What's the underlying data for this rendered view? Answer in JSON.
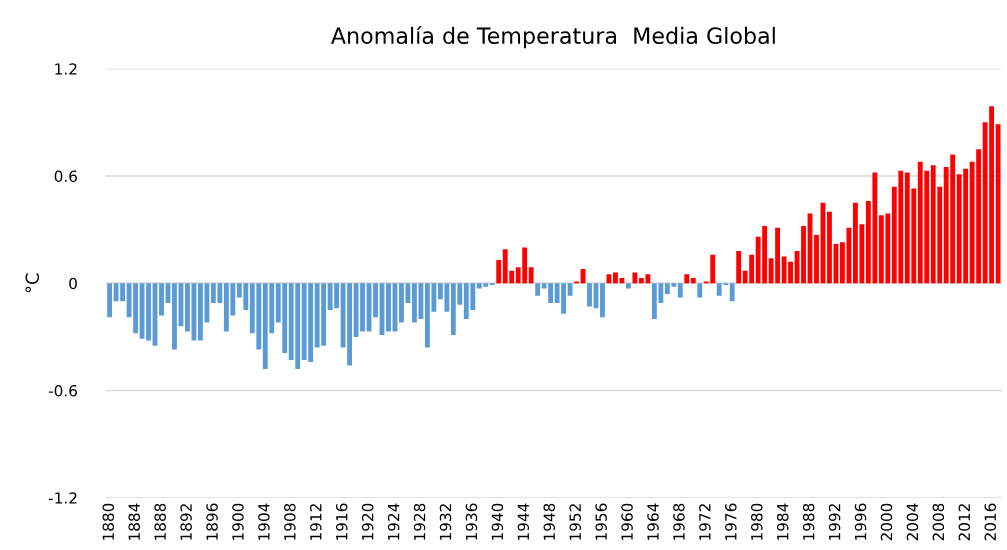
{
  "chart_data": {
    "type": "bar",
    "title": "Anomalía de Temperatura  Media Global",
    "ylabel": "°C",
    "categories": [
      "1880",
      null,
      null,
      null,
      "1884",
      null,
      null,
      null,
      "1888",
      null,
      null,
      null,
      "1892",
      null,
      null,
      null,
      "1896",
      null,
      null,
      null,
      "1900",
      null,
      null,
      null,
      "1904",
      null,
      null,
      null,
      "1908",
      null,
      null,
      null,
      "1912",
      null,
      null,
      null,
      "1916",
      null,
      null,
      null,
      "1920",
      null,
      null,
      null,
      "1924",
      null,
      null,
      null,
      "1928",
      null,
      null,
      null,
      "1932",
      null,
      null,
      null,
      "1936",
      null,
      null,
      null,
      "1940",
      null,
      null,
      null,
      "1944",
      null,
      null,
      null,
      "1948",
      null,
      null,
      null,
      "1952",
      null,
      null,
      null,
      "1956",
      null,
      null,
      null,
      "1960",
      null,
      null,
      null,
      "1964",
      null,
      null,
      null,
      "1968",
      null,
      null,
      null,
      "1972",
      null,
      null,
      null,
      "1976",
      null,
      null,
      null,
      "1980",
      null,
      null,
      null,
      "1984",
      null,
      null,
      null,
      "1988",
      null,
      null,
      null,
      "1992",
      null,
      null,
      null,
      "1996",
      null,
      null,
      null,
      "2000",
      null,
      null,
      null,
      "2004",
      null,
      null,
      null,
      "2008",
      null,
      null,
      null,
      "2012",
      null,
      null,
      null,
      "2016",
      null
    ],
    "values": [
      -0.19,
      -0.1,
      -0.1,
      -0.19,
      -0.28,
      -0.31,
      -0.32,
      -0.35,
      -0.18,
      -0.11,
      -0.37,
      -0.24,
      -0.27,
      -0.32,
      -0.32,
      -0.22,
      -0.11,
      -0.11,
      -0.27,
      -0.18,
      -0.08,
      -0.15,
      -0.28,
      -0.37,
      -0.48,
      -0.28,
      -0.22,
      -0.39,
      -0.43,
      -0.48,
      -0.43,
      -0.44,
      -0.36,
      -0.35,
      -0.15,
      -0.14,
      -0.36,
      -0.46,
      -0.3,
      -0.27,
      -0.27,
      -0.19,
      -0.29,
      -0.27,
      -0.27,
      -0.22,
      -0.11,
      -0.22,
      -0.2,
      -0.36,
      -0.16,
      -0.09,
      -0.16,
      -0.29,
      -0.12,
      -0.2,
      -0.15,
      -0.03,
      -0.02,
      -0.01,
      0.13,
      0.19,
      0.07,
      0.09,
      0.2,
      0.09,
      -0.07,
      -0.03,
      -0.11,
      -0.11,
      -0.17,
      -0.07,
      0.01,
      0.08,
      -0.13,
      -0.14,
      -0.19,
      0.05,
      0.06,
      0.03,
      -0.03,
      0.06,
      0.03,
      0.05,
      -0.2,
      -0.11,
      -0.06,
      -0.02,
      -0.08,
      0.05,
      0.03,
      -0.08,
      0.01,
      0.16,
      -0.07,
      -0.01,
      -0.1,
      0.18,
      0.07,
      0.16,
      0.26,
      0.32,
      0.14,
      0.31,
      0.15,
      0.12,
      0.18,
      0.32,
      0.39,
      0.27,
      0.45,
      0.4,
      0.22,
      0.23,
      0.31,
      0.45,
      0.33,
      0.46,
      0.62,
      0.38,
      0.39,
      0.54,
      0.63,
      0.62,
      0.53,
      0.68,
      0.63,
      0.66,
      0.54,
      0.65,
      0.72,
      0.61,
      0.64,
      0.68,
      0.75,
      0.9,
      0.99,
      0.89
    ],
    "colors": [
      "#5b9bd5",
      "#5b9bd5",
      "#5b9bd5",
      "#5b9bd5",
      "#5b9bd5",
      "#5b9bd5",
      "#5b9bd5",
      "#5b9bd5",
      "#5b9bd5",
      "#5b9bd5",
      "#5b9bd5",
      "#5b9bd5",
      "#5b9bd5",
      "#5b9bd5",
      "#5b9bd5",
      "#5b9bd5",
      "#5b9bd5",
      "#5b9bd5",
      "#5b9bd5",
      "#5b9bd5",
      "#5b9bd5",
      "#5b9bd5",
      "#5b9bd5",
      "#5b9bd5",
      "#5b9bd5",
      "#5b9bd5",
      "#5b9bd5",
      "#5b9bd5",
      "#5b9bd5",
      "#5b9bd5",
      "#5b9bd5",
      "#5b9bd5",
      "#5b9bd5",
      "#5b9bd5",
      "#5b9bd5",
      "#5b9bd5",
      "#5b9bd5",
      "#5b9bd5",
      "#5b9bd5",
      "#5b9bd5",
      "#5b9bd5",
      "#5b9bd5",
      "#5b9bd5",
      "#5b9bd5",
      "#5b9bd5",
      "#5b9bd5",
      "#5b9bd5",
      "#5b9bd5",
      "#5b9bd5",
      "#5b9bd5",
      "#5b9bd5",
      "#5b9bd5",
      "#5b9bd5",
      "#5b9bd5",
      "#5b9bd5",
      "#5b9bd5",
      "#5b9bd5",
      "#5b9bd5",
      "#5b9bd5",
      "#5b9bd5",
      "#ff0000",
      "#ff0000",
      "#ff0000",
      "#ff0000",
      "#ff0000",
      "#ff0000",
      "#5b9bd5",
      "#5b9bd5",
      "#5b9bd5",
      "#5b9bd5",
      "#5b9bd5",
      "#5b9bd5",
      "#ff0000",
      "#ff0000",
      "#5b9bd5",
      "#5b9bd5",
      "#5b9bd5",
      "#ff0000",
      "#ff0000",
      "#ff0000",
      "#5b9bd5",
      "#ff0000",
      "#ff0000",
      "#ff0000",
      "#5b9bd5",
      "#5b9bd5",
      "#5b9bd5",
      "#5b9bd5",
      "#5b9bd5",
      "#ff0000",
      "#ff0000",
      "#5b9bd5",
      "#ff0000",
      "#ff0000",
      "#5b9bd5",
      "#5b9bd5",
      "#5b9bd5",
      "#ff0000",
      "#ff0000",
      "#ff0000",
      "#ff0000",
      "#ff0000",
      "#ff0000",
      "#ff0000",
      "#ff0000",
      "#ff0000",
      "#ff0000",
      "#ff0000",
      "#ff0000",
      "#ff0000",
      "#ff0000",
      "#ff0000",
      "#ff0000",
      "#ff0000",
      "#ff0000",
      "#ff0000",
      "#ff0000",
      "#ff0000",
      "#ff0000",
      "#ff0000",
      "#ff0000",
      "#ff0000",
      "#ff0000",
      "#ff0000",
      "#ff0000",
      "#ff0000",
      "#ff0000",
      "#ff0000",
      "#ff0000",
      "#ff0000",
      "#ff0000",
      "#ff0000",
      "#ff0000",
      "#ff0000",
      "#ff0000",
      "#ff0000",
      "#ff0000",
      "#ff0000"
    ],
    "ylim": [
      -1.2,
      1.2
    ],
    "yticks": [
      {
        "value": -1.2,
        "label": "-1.2"
      },
      {
        "value": -0.6,
        "label": "-0.6"
      },
      0,
      0.6,
      1.2
    ],
    "grid": "y"
  }
}
